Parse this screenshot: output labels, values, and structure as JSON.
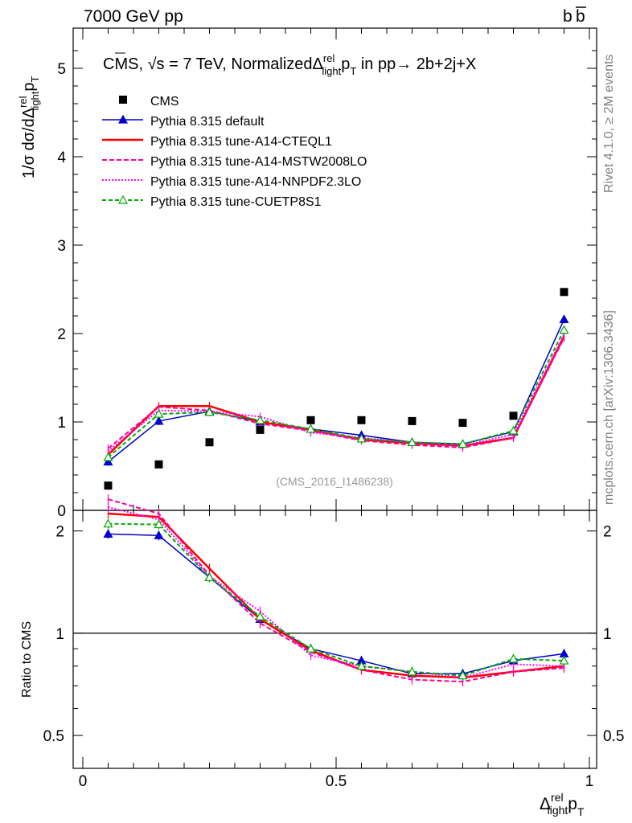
{
  "header": {
    "left": "7000 GeV pp",
    "right": "b",
    "right_bar": "b"
  },
  "side_labels": {
    "rivet": "Rivet 4.1.0, ≥ 2M events",
    "mcplots": "mcplots.cern.ch [arXiv:1306.3436]"
  },
  "title": {
    "prefix": "CMS, ",
    "sqrt": "√s",
    "middle": " = 7 TeV, NormalizedΔ",
    "sup": "rel",
    "sub": "light",
    "p": "p",
    "psub": "T",
    "suffix": " in pp→  2b+2j+X"
  },
  "watermark": "(CMS_2016_I1486238)",
  "axis": {
    "y_main_label": {
      "a": "1/σ dσ/dΔ",
      "sup": "rel",
      "sub": "light",
      "p": "p",
      "psub": "T"
    },
    "y_ratio_label": "Ratio to CMS",
    "x_label": {
      "d": "Δ",
      "sup": "rel",
      "sub": "light",
      "p": "p",
      "psub": "T"
    },
    "main_ticks": [
      "0",
      "1",
      "2",
      "3",
      "4",
      "5"
    ],
    "ratio_ticks": [
      "0.5",
      "1",
      "2"
    ],
    "ratio_ticks_right": [
      "0.5",
      "1",
      "2"
    ],
    "x_ticks": [
      "0",
      "0.5",
      "1"
    ]
  },
  "legend": [
    {
      "label": "CMS"
    },
    {
      "label": "Pythia 8.315 default"
    },
    {
      "label": "Pythia 8.315 tune-A14-CTEQL1"
    },
    {
      "label": "Pythia 8.315 tune-A14-MSTW2008LO"
    },
    {
      "label": "Pythia 8.315 tune-A14-NNPDF2.3LO"
    },
    {
      "label": "Pythia 8.315 tune-CUETP8S1"
    }
  ],
  "chart_data": {
    "type": "line",
    "title": "CMS, √s = 7 TeV, Normalized Δrel_light pT in pp → 2b+2j+X",
    "xlabel": "Δrel_light pT",
    "ylabel": "1/σ dσ/dΔrel_light pT",
    "xlim": [
      0,
      1
    ],
    "ylim": [
      0,
      5.4
    ],
    "ratio_ylim": [
      0.4,
      2.3
    ],
    "ratio_log": true,
    "x": [
      0.05,
      0.15,
      0.25,
      0.35,
      0.45,
      0.55,
      0.65,
      0.75,
      0.85,
      0.95
    ],
    "data": {
      "name": "CMS",
      "values": [
        0.28,
        0.52,
        0.77,
        0.91,
        1.02,
        1.02,
        1.01,
        0.99,
        1.07,
        2.47
      ]
    },
    "series": [
      {
        "name": "Pythia 8.315 default",
        "color": "#0000cc",
        "dash": "",
        "marker": "triangle-filled",
        "values": [
          0.55,
          1.01,
          1.12,
          1.0,
          0.92,
          0.85,
          0.77,
          0.75,
          0.89,
          2.16
        ],
        "ratio": [
          1.96,
          1.94,
          1.46,
          1.1,
          0.9,
          0.83,
          0.76,
          0.76,
          0.83,
          0.87
        ]
      },
      {
        "name": "Pythia 8.315 tune-A14-CTEQL1",
        "color": "#ff0000",
        "dash": "",
        "marker": "none",
        "values": [
          0.63,
          1.18,
          1.18,
          1.0,
          0.91,
          0.8,
          0.76,
          0.73,
          0.82,
          1.97
        ],
        "ratio": [
          2.25,
          2.2,
          1.55,
          1.1,
          0.89,
          0.78,
          0.75,
          0.74,
          0.77,
          0.8
        ]
      },
      {
        "name": "Pythia 8.315 tune-A14-MSTW2008LO",
        "color": "#ff0099",
        "dash": "6,3",
        "marker": "none",
        "values": [
          0.7,
          1.17,
          1.13,
          0.98,
          0.9,
          0.79,
          0.74,
          0.71,
          0.82,
          1.95
        ],
        "ratio": [
          2.48,
          2.25,
          1.48,
          1.07,
          0.88,
          0.78,
          0.73,
          0.72,
          0.77,
          0.79
        ]
      },
      {
        "name": "Pythia 8.315 tune-A14-NNPDF2.3LO",
        "color": "#ff00ff",
        "dash": "2,2",
        "marker": "none",
        "values": [
          0.67,
          1.13,
          1.12,
          1.06,
          0.88,
          0.82,
          0.77,
          0.73,
          0.86,
          1.99
        ],
        "ratio": [
          2.35,
          2.16,
          1.47,
          1.16,
          0.86,
          0.8,
          0.77,
          0.74,
          0.81,
          0.8
        ]
      },
      {
        "name": "Pythia 8.315 tune-CUETP8S1",
        "color": "#00aa00",
        "dash": "5,3",
        "marker": "triangle-open",
        "values": [
          0.6,
          1.09,
          1.11,
          1.02,
          0.92,
          0.81,
          0.77,
          0.75,
          0.9,
          2.04
        ],
        "ratio": [
          2.1,
          2.09,
          1.46,
          1.12,
          0.9,
          0.8,
          0.77,
          0.75,
          0.84,
          0.83
        ]
      }
    ]
  }
}
